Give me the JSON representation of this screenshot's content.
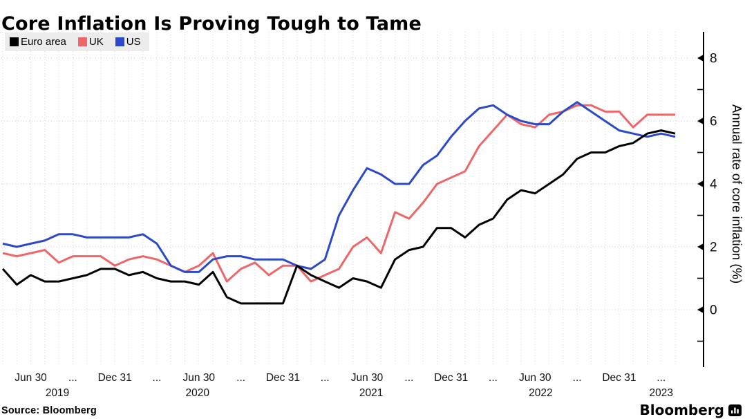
{
  "title": "Core Inflation Is Proving Tough to Tame",
  "footer": {
    "source_label": "Source: Bloomberg",
    "brand_label": "Bloomberg",
    "brand_icon": "bloomberg-bar-chart-icon"
  },
  "chart_data": {
    "type": "line",
    "title": "Core Inflation Is Proving Tough to Tame",
    "xlabel": "",
    "ylabel": "Annual rate of core inflation (%)",
    "ylim": [
      -1.5,
      8.7
    ],
    "yticks_major": [
      0,
      2,
      4,
      6,
      8
    ],
    "yticks_minor": [
      -1,
      1,
      3,
      5,
      7
    ],
    "grid": "dotted vertical line each month, dotted horizontal line at each major y tick",
    "legend_position": "top-left",
    "x_unit": "month-end",
    "x_start": "2019-04",
    "x_end": "2023-04",
    "x_quarter_ticks": [
      {
        "month_index": 2,
        "label": "Jun 30"
      },
      {
        "month_index": 5,
        "label": "..."
      },
      {
        "month_index": 8,
        "label": "Dec 31"
      },
      {
        "month_index": 11,
        "label": "..."
      },
      {
        "month_index": 14,
        "label": "Jun 30"
      },
      {
        "month_index": 17,
        "label": "..."
      },
      {
        "month_index": 20,
        "label": "Dec 31"
      },
      {
        "month_index": 23,
        "label": "..."
      },
      {
        "month_index": 26,
        "label": "Jun 30"
      },
      {
        "month_index": 29,
        "label": "..."
      },
      {
        "month_index": 32,
        "label": "Dec 31"
      },
      {
        "month_index": 35,
        "label": "..."
      },
      {
        "month_index": 38,
        "label": "Jun 30"
      },
      {
        "month_index": 41,
        "label": "..."
      },
      {
        "month_index": 44,
        "label": "Dec 31"
      },
      {
        "month_index": 47,
        "label": "..."
      }
    ],
    "x_year_labels": [
      {
        "month_index": 3.9,
        "label": "2019"
      },
      {
        "month_index": 13.9,
        "label": "2020"
      },
      {
        "month_index": 26.3,
        "label": "2021"
      },
      {
        "month_index": 38.4,
        "label": "2022"
      },
      {
        "month_index": 47.0,
        "label": "2023"
      }
    ],
    "series": [
      {
        "name": "Euro area",
        "color": "#000000",
        "values": [
          1.3,
          0.8,
          1.1,
          0.9,
          0.9,
          1.0,
          1.1,
          1.3,
          1.3,
          1.1,
          1.2,
          1.0,
          0.9,
          0.9,
          0.8,
          1.2,
          0.4,
          0.2,
          0.2,
          0.2,
          0.2,
          1.4,
          1.1,
          0.9,
          0.7,
          1.0,
          0.9,
          0.7,
          1.6,
          1.9,
          2.0,
          2.6,
          2.6,
          2.3,
          2.7,
          2.9,
          3.5,
          3.8,
          3.7,
          4.0,
          4.3,
          4.8,
          5.0,
          5.0,
          5.2,
          5.3,
          5.6,
          5.7,
          5.6
        ]
      },
      {
        "name": "UK",
        "color": "#ef6668",
        "values": [
          1.8,
          1.7,
          1.8,
          1.9,
          1.5,
          1.7,
          1.7,
          1.7,
          1.4,
          1.6,
          1.7,
          1.6,
          1.4,
          1.2,
          1.4,
          1.8,
          0.9,
          1.3,
          1.5,
          1.1,
          1.4,
          1.4,
          0.9,
          1.1,
          1.3,
          2.0,
          2.3,
          1.8,
          3.1,
          2.9,
          3.4,
          4.0,
          4.2,
          4.4,
          5.2,
          5.7,
          6.2,
          5.9,
          5.8,
          6.2,
          6.3,
          6.5,
          6.5,
          6.3,
          6.3,
          5.8,
          6.2,
          6.2,
          6.2
        ]
      },
      {
        "name": "US",
        "color": "#2b49c8",
        "values": [
          2.1,
          2.0,
          2.1,
          2.2,
          2.4,
          2.4,
          2.3,
          2.3,
          2.3,
          2.3,
          2.4,
          2.1,
          1.4,
          1.2,
          1.2,
          1.6,
          1.7,
          1.7,
          1.6,
          1.6,
          1.6,
          1.4,
          1.3,
          1.6,
          3.0,
          3.8,
          4.5,
          4.3,
          4.0,
          4.0,
          4.6,
          4.9,
          5.5,
          6.0,
          6.4,
          6.5,
          6.2,
          6.0,
          5.9,
          5.9,
          6.3,
          6.6,
          6.3,
          6.0,
          5.7,
          5.6,
          5.5,
          5.6,
          5.5
        ]
      }
    ]
  }
}
